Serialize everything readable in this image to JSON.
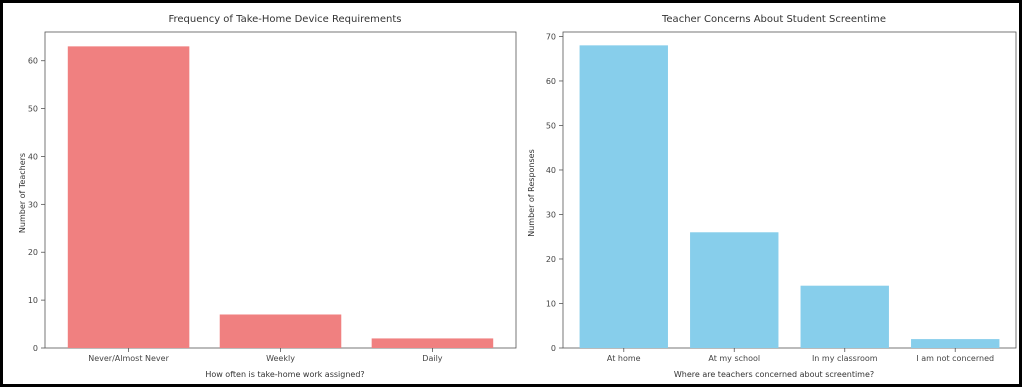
{
  "chart_data": [
    {
      "type": "bar",
      "title": "Frequency of Take-Home Device Requirements",
      "xlabel": "How often is take-home work assigned?",
      "ylabel": "Number of Teachers",
      "categories": [
        "Never/Almost Never",
        "Weekly",
        "Daily"
      ],
      "values": [
        63,
        7,
        2
      ],
      "ylim": [
        0,
        66
      ],
      "yticks": [
        0,
        10,
        20,
        30,
        40,
        50,
        60
      ],
      "color": "#f08080",
      "grid": false
    },
    {
      "type": "bar",
      "title": "Teacher Concerns About Student Screentime",
      "xlabel": "Where are teachers concerned about screentime?",
      "ylabel": "Number of Responses",
      "categories": [
        "At home",
        "At my school",
        "In my classroom",
        "I am not concerned"
      ],
      "values": [
        68,
        26,
        14,
        2
      ],
      "ylim": [
        0,
        71
      ],
      "yticks": [
        0,
        10,
        20,
        30,
        40,
        50,
        60,
        70
      ],
      "color": "#87ceeb",
      "grid": false
    }
  ]
}
